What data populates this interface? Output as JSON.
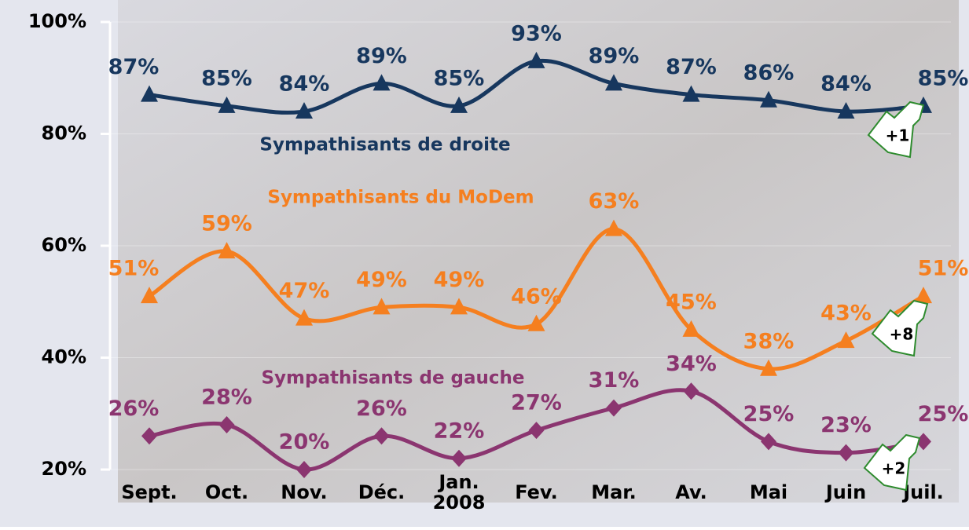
{
  "chart_data": {
    "type": "line",
    "categories": [
      "Sept.",
      "Oct.",
      "Nov.",
      "Déc.",
      "Jan. 2008",
      "Fev.",
      "Mar.",
      "Av.",
      "Mai",
      "Juin",
      "Juil."
    ],
    "series": [
      {
        "name": "Sympathisants de droite",
        "color": "#17375e",
        "marker": "triangle",
        "values": [
          87,
          85,
          84,
          89,
          85,
          93,
          89,
          87,
          86,
          84,
          85
        ],
        "value_labels": [
          "87%",
          "85%",
          "84%",
          "89%",
          "85%",
          "93%",
          "89%",
          "87%",
          "86%",
          "84%",
          "85%"
        ]
      },
      {
        "name": "Sympathisants du MoDem",
        "color": "#f57f1f",
        "marker": "triangle",
        "values": [
          51,
          59,
          47,
          49,
          49,
          46,
          63,
          45,
          38,
          43,
          51
        ],
        "value_labels": [
          "51%",
          "59%",
          "47%",
          "49%",
          "49%",
          "46%",
          "63%",
          "45%",
          "38%",
          "43%",
          "51%"
        ]
      },
      {
        "name": "Sympathisants de gauche",
        "color": "#8b3570",
        "marker": "diamond",
        "values": [
          26,
          28,
          20,
          26,
          22,
          27,
          31,
          34,
          25,
          23,
          25
        ],
        "value_labels": [
          "26%",
          "28%",
          "20%",
          "26%",
          "22%",
          "27%",
          "31%",
          "34%",
          "25%",
          "23%",
          "25%"
        ]
      }
    ],
    "ylim": [
      20,
      100
    ],
    "yticks": [
      {
        "value": 20,
        "label": "20%"
      },
      {
        "value": 40,
        "label": "40%"
      },
      {
        "value": 60,
        "label": "60%"
      },
      {
        "value": 80,
        "label": "80%"
      },
      {
        "value": 100,
        "label": "100%"
      }
    ],
    "annotations": [
      "+1",
      "+8",
      "+2"
    ]
  }
}
